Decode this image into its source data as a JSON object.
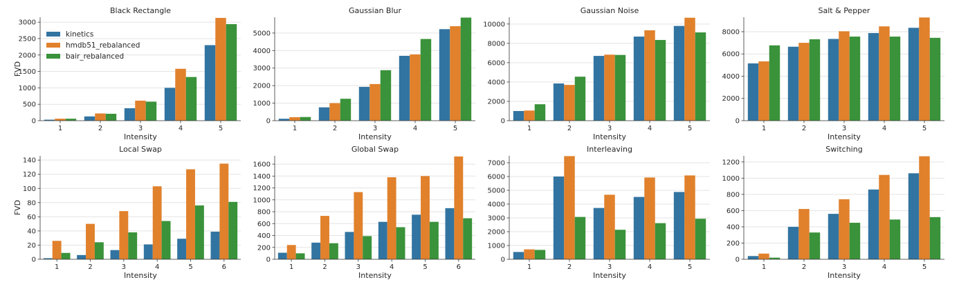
{
  "series_names": [
    "kinetics",
    "hmdb51_rebalanced",
    "bair_rebalanced"
  ],
  "colors": [
    "#3274a1",
    "#e1812c",
    "#3a923a"
  ],
  "chart_data": [
    {
      "type": "bar",
      "title": "Black Rectangle",
      "xlabel": "Intensity",
      "ylabel": "FVD",
      "categories": [
        "1",
        "2",
        "3",
        "4",
        "5"
      ],
      "ylim": [
        0,
        3150
      ],
      "yticks": [
        0,
        500,
        1000,
        1500,
        2000,
        2500,
        3000
      ],
      "legend": "top-left",
      "series": [
        {
          "name": "kinetics",
          "values": [
            30,
            130,
            380,
            1000,
            2300
          ]
        },
        {
          "name": "hmdb51_rebalanced",
          "values": [
            60,
            220,
            610,
            1580,
            3130
          ]
        },
        {
          "name": "bair_rebalanced",
          "values": [
            60,
            210,
            580,
            1330,
            2940
          ]
        }
      ]
    },
    {
      "type": "bar",
      "title": "Gaussian Blur",
      "xlabel": "Intensity",
      "ylabel": "",
      "categories": [
        "1",
        "2",
        "3",
        "4",
        "5"
      ],
      "ylim": [
        0,
        5900
      ],
      "yticks": [
        0,
        1000,
        2000,
        3000,
        4000,
        5000
      ],
      "series": [
        {
          "name": "kinetics",
          "values": [
            110,
            760,
            1930,
            3700,
            5220
          ]
        },
        {
          "name": "hmdb51_rebalanced",
          "values": [
            200,
            1000,
            2090,
            3780,
            5390
          ]
        },
        {
          "name": "bair_rebalanced",
          "values": [
            210,
            1250,
            2880,
            4660,
            5880
          ]
        }
      ]
    },
    {
      "type": "bar",
      "title": "Gaussian Noise",
      "xlabel": "Intensity",
      "ylabel": "",
      "categories": [
        "1",
        "2",
        "3",
        "4",
        "5"
      ],
      "ylim": [
        0,
        10700
      ],
      "yticks": [
        0,
        2000,
        4000,
        6000,
        8000,
        10000
      ],
      "series": [
        {
          "name": "kinetics",
          "values": [
            1000,
            3850,
            6700,
            8700,
            9800
          ]
        },
        {
          "name": "hmdb51_rebalanced",
          "values": [
            1050,
            3700,
            6830,
            9350,
            10650
          ]
        },
        {
          "name": "bair_rebalanced",
          "values": [
            1700,
            4550,
            6800,
            8350,
            9130
          ]
        }
      ]
    },
    {
      "type": "bar",
      "title": "Salt & Pepper",
      "xlabel": "Intensity",
      "ylabel": "",
      "categories": [
        "1",
        "2",
        "3",
        "4",
        "5"
      ],
      "ylim": [
        0,
        9300
      ],
      "yticks": [
        0,
        2000,
        4000,
        6000,
        8000
      ],
      "series": [
        {
          "name": "kinetics",
          "values": [
            5150,
            6650,
            7350,
            7880,
            8350
          ]
        },
        {
          "name": "hmdb51_rebalanced",
          "values": [
            5330,
            7000,
            8040,
            8480,
            9280
          ]
        },
        {
          "name": "bair_rebalanced",
          "values": [
            6770,
            7320,
            7560,
            7560,
            7450
          ]
        }
      ]
    },
    {
      "type": "bar",
      "title": "Local Swap",
      "xlabel": "Intensity",
      "ylabel": "FVD",
      "categories": [
        "1",
        "2",
        "3",
        "4",
        "5",
        "6"
      ],
      "ylim": [
        0,
        146
      ],
      "yticks": [
        0,
        20,
        40,
        60,
        80,
        100,
        120,
        140
      ],
      "series": [
        {
          "name": "kinetics",
          "values": [
            1.5,
            6,
            13,
            21,
            29,
            39
          ]
        },
        {
          "name": "hmdb51_rebalanced",
          "values": [
            26,
            50,
            68,
            103,
            127,
            135
          ]
        },
        {
          "name": "bair_rebalanced",
          "values": [
            9,
            24,
            38,
            54,
            76,
            81
          ]
        }
      ]
    },
    {
      "type": "bar",
      "title": "Global Swap",
      "xlabel": "Intensity",
      "ylabel": "",
      "categories": [
        "1",
        "2",
        "3",
        "4",
        "5",
        "6"
      ],
      "ylim": [
        0,
        1740
      ],
      "yticks": [
        0,
        200,
        400,
        600,
        800,
        1000,
        1200,
        1400,
        1600
      ],
      "series": [
        {
          "name": "kinetics",
          "values": [
            110,
            280,
            460,
            630,
            750,
            860
          ]
        },
        {
          "name": "hmdb51_rebalanced",
          "values": [
            240,
            730,
            1130,
            1380,
            1400,
            1730
          ]
        },
        {
          "name": "bair_rebalanced",
          "values": [
            100,
            270,
            390,
            540,
            630,
            690
          ]
        }
      ]
    },
    {
      "type": "bar",
      "title": "Interleaving",
      "xlabel": "Intensity",
      "ylabel": "",
      "categories": [
        "1",
        "2",
        "3",
        "4",
        "5"
      ],
      "ylim": [
        0,
        7500
      ],
      "yticks": [
        0,
        1000,
        2000,
        3000,
        4000,
        5000,
        6000,
        7000
      ],
      "series": [
        {
          "name": "kinetics",
          "values": [
            530,
            6000,
            3720,
            4520,
            4880
          ]
        },
        {
          "name": "hmdb51_rebalanced",
          "values": [
            720,
            7480,
            4680,
            5930,
            6080
          ]
        },
        {
          "name": "bair_rebalanced",
          "values": [
            680,
            3070,
            2140,
            2620,
            2940
          ]
        }
      ]
    },
    {
      "type": "bar",
      "title": "Switching",
      "xlabel": "Intensity",
      "ylabel": "",
      "categories": [
        "1",
        "2",
        "3",
        "4",
        "5"
      ],
      "ylim": [
        0,
        1275
      ],
      "yticks": [
        0,
        200,
        400,
        600,
        800,
        1000,
        1200
      ],
      "series": [
        {
          "name": "kinetics",
          "values": [
            40,
            400,
            560,
            860,
            1060
          ]
        },
        {
          "name": "hmdb51_rebalanced",
          "values": [
            70,
            620,
            740,
            1040,
            1270
          ]
        },
        {
          "name": "bair_rebalanced",
          "values": [
            20,
            330,
            450,
            490,
            520
          ]
        }
      ]
    }
  ]
}
